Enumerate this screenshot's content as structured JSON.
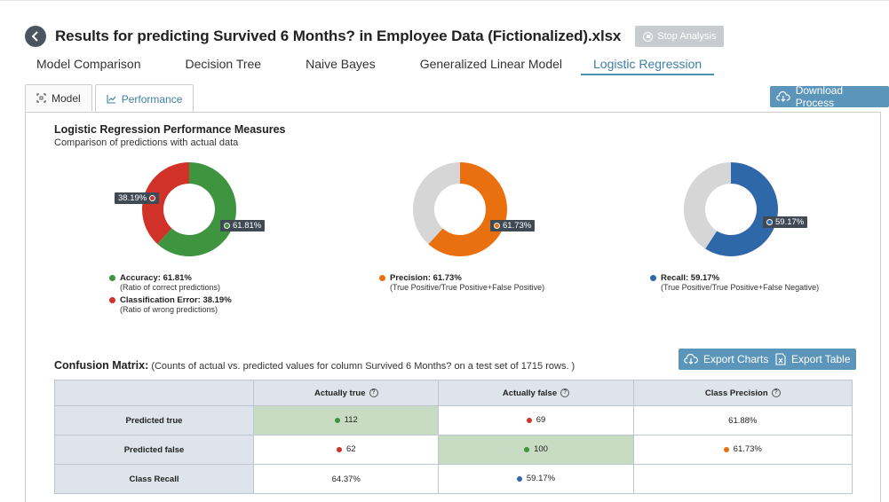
{
  "header": {
    "title": "Results for predicting Survived 6 Months? in Employee Data (Fictionalized).xlsx",
    "stop_label": "Stop Analysis"
  },
  "top_tabs": [
    {
      "label": "Model Comparison",
      "active": false
    },
    {
      "label": "Decision Tree",
      "active": false
    },
    {
      "label": "Naive Bayes",
      "active": false
    },
    {
      "label": "Generalized Linear Model",
      "active": false
    },
    {
      "label": "Logistic Regression",
      "active": true
    }
  ],
  "sub_tabs": [
    {
      "label": "Model",
      "icon": "frame-icon",
      "active": false
    },
    {
      "label": "Performance",
      "icon": "line-chart-icon",
      "active": true
    }
  ],
  "download_label": "Download Process",
  "performance": {
    "title": "Logistic Regression Performance Measures",
    "subtitle": "Comparison of predictions with actual data"
  },
  "chart_data": [
    {
      "type": "pie",
      "categories": [
        "Accuracy",
        "Classification Error"
      ],
      "values": [
        61.81,
        38.19
      ],
      "colors": [
        "#3f9440",
        "#d0322a"
      ],
      "labels": [
        "61.81%",
        "38.19%"
      ],
      "legend": [
        {
          "label": "Accuracy: 61.81%",
          "desc": "(Ratio of correct predictions)",
          "color": "#3f9440"
        },
        {
          "label": "Classification Error: 38.19%",
          "desc": "(Ratio of wrong predictions)",
          "color": "#d0322a"
        }
      ]
    },
    {
      "type": "pie",
      "categories": [
        "Precision",
        "Other"
      ],
      "values": [
        61.73,
        38.27
      ],
      "colors": [
        "#e8700e",
        "#d6d6d6"
      ],
      "labels": [
        "61.73%"
      ],
      "legend": [
        {
          "label": "Precision: 61.73%",
          "desc": "(True Positive/True Positive+False Positive)",
          "color": "#e8700e"
        }
      ]
    },
    {
      "type": "pie",
      "categories": [
        "Recall",
        "Other"
      ],
      "values": [
        59.17,
        40.83
      ],
      "colors": [
        "#2e68a8",
        "#d6d6d6"
      ],
      "labels": [
        "59.17%"
      ],
      "legend": [
        {
          "label": "Recall: 59.17%",
          "desc": "(True Positive/True Positive+False Negative)",
          "color": "#2e68a8"
        }
      ]
    }
  ],
  "confusion": {
    "title": "Confusion Matrix:",
    "subtitle": "(Counts of actual vs. predicted values for column Survived 6 Months? on a test set of 1715 rows. )",
    "export_charts": "Export Charts",
    "export_table": "Export Table",
    "headers": [
      "",
      "Actually true",
      "Actually false",
      "Class Precision"
    ],
    "rows": [
      {
        "label": "Predicted true",
        "cells": [
          {
            "value": "112",
            "bullet": "#3f9440",
            "diag": true
          },
          {
            "value": "69",
            "bullet": "#d0322a",
            "diag": false
          },
          {
            "value": "61.88%",
            "bullet": "",
            "diag": false
          }
        ]
      },
      {
        "label": "Predicted false",
        "cells": [
          {
            "value": "62",
            "bullet": "#d0322a",
            "diag": false
          },
          {
            "value": "100",
            "bullet": "#3f9440",
            "diag": true
          },
          {
            "value": "61.73%",
            "bullet": "#e8700e",
            "diag": false
          }
        ]
      },
      {
        "label": "Class Recall",
        "cells": [
          {
            "value": "64.37%",
            "bullet": "",
            "diag": false
          },
          {
            "value": "59.17%",
            "bullet": "#2e68a8",
            "diag": false
          },
          {
            "value": "",
            "bullet": "",
            "diag": false
          }
        ]
      }
    ]
  }
}
